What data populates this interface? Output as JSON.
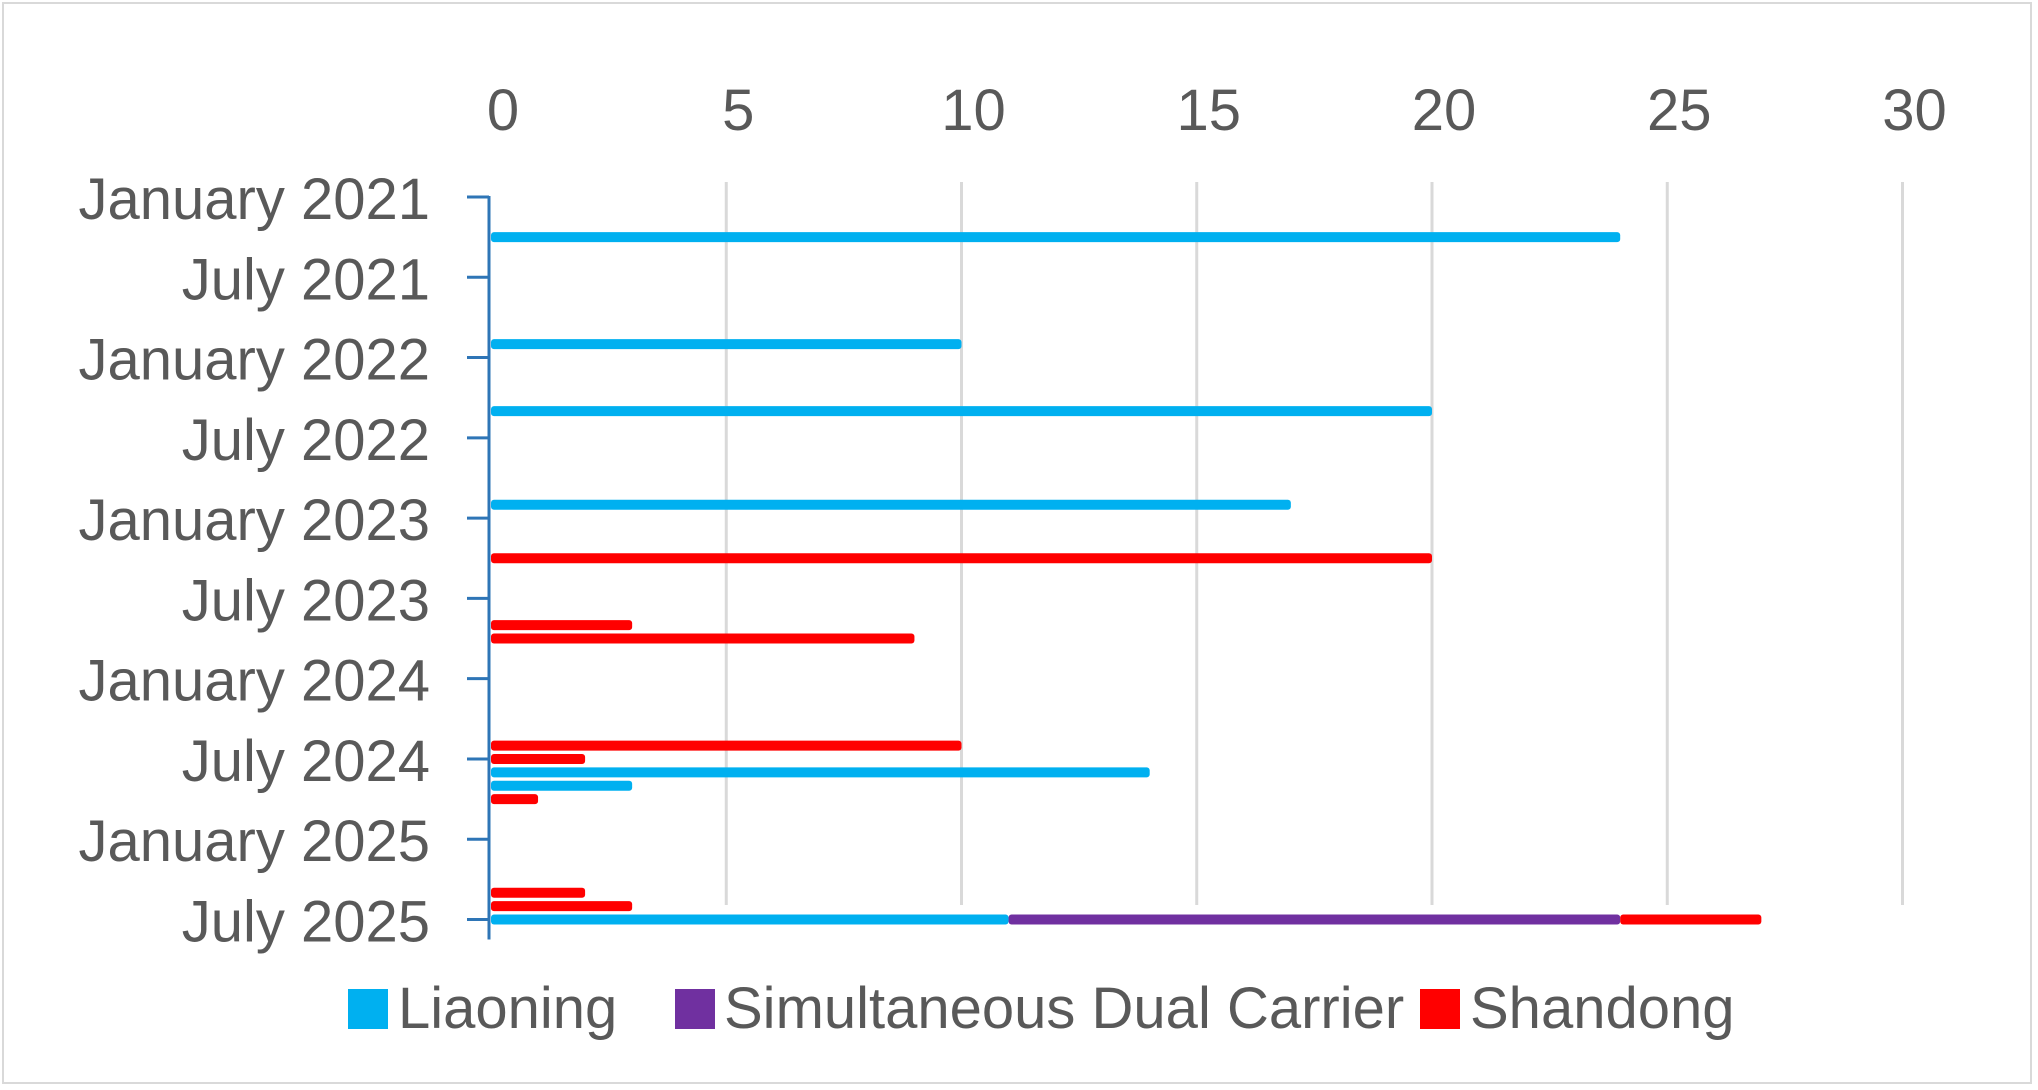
{
  "chart_data": {
    "type": "bar",
    "orientation": "horizontal",
    "stacked": true,
    "title": "",
    "xlabel": "",
    "ylabel": "",
    "x_axis_position": "top",
    "xlim": [
      0,
      30
    ],
    "x_ticks": [
      0,
      5,
      10,
      15,
      20,
      25,
      30
    ],
    "grid": true,
    "y_axis": {
      "type": "date",
      "start": "2021-01",
      "end": "2025-07",
      "tick_labels": [
        "January 2021",
        "July 2021",
        "January 2022",
        "July 2022",
        "January 2023",
        "July 2023",
        "January 2024",
        "July 2024",
        "January 2025",
        "July 2025"
      ]
    },
    "legend_position": "bottom",
    "series": [
      {
        "name": "Liaoning",
        "color": "#00b0f0"
      },
      {
        "name": "Simultaneous Dual Carrier",
        "color": "#7030a0"
      },
      {
        "name": "Shandong",
        "color": "#ff0000"
      }
    ],
    "bars": [
      {
        "date": "2021-04",
        "segments": [
          {
            "series": "Liaoning",
            "value": 24
          }
        ]
      },
      {
        "date": "2021-12",
        "segments": [
          {
            "series": "Liaoning",
            "value": 10
          }
        ]
      },
      {
        "date": "2022-05",
        "segments": [
          {
            "series": "Liaoning",
            "value": 20
          }
        ]
      },
      {
        "date": "2022-12",
        "segments": [
          {
            "series": "Liaoning",
            "value": 17
          }
        ]
      },
      {
        "date": "2023-04",
        "segments": [
          {
            "series": "Shandong",
            "value": 20
          }
        ]
      },
      {
        "date": "2023-09",
        "segments": [
          {
            "series": "Shandong",
            "value": 3
          }
        ]
      },
      {
        "date": "2023-10",
        "segments": [
          {
            "series": "Shandong",
            "value": 9
          }
        ]
      },
      {
        "date": "2024-06",
        "segments": [
          {
            "series": "Shandong",
            "value": 10
          }
        ]
      },
      {
        "date": "2024-07",
        "segments": [
          {
            "series": "Shandong",
            "value": 2
          }
        ]
      },
      {
        "date": "2024-08",
        "segments": [
          {
            "series": "Liaoning",
            "value": 14
          }
        ]
      },
      {
        "date": "2024-09",
        "segments": [
          {
            "series": "Liaoning",
            "value": 3
          }
        ]
      },
      {
        "date": "2024-10",
        "segments": [
          {
            "series": "Shandong",
            "value": 1
          }
        ]
      },
      {
        "date": "2025-05",
        "segments": [
          {
            "series": "Shandong",
            "value": 2
          }
        ]
      },
      {
        "date": "2025-06",
        "segments": [
          {
            "series": "Shandong",
            "value": 3
          }
        ]
      },
      {
        "date": "2025-07",
        "segments": [
          {
            "series": "Liaoning",
            "value": 11
          },
          {
            "series": "Simultaneous Dual Carrier",
            "value": 13
          },
          {
            "series": "Shandong",
            "value": 3
          }
        ]
      }
    ]
  }
}
